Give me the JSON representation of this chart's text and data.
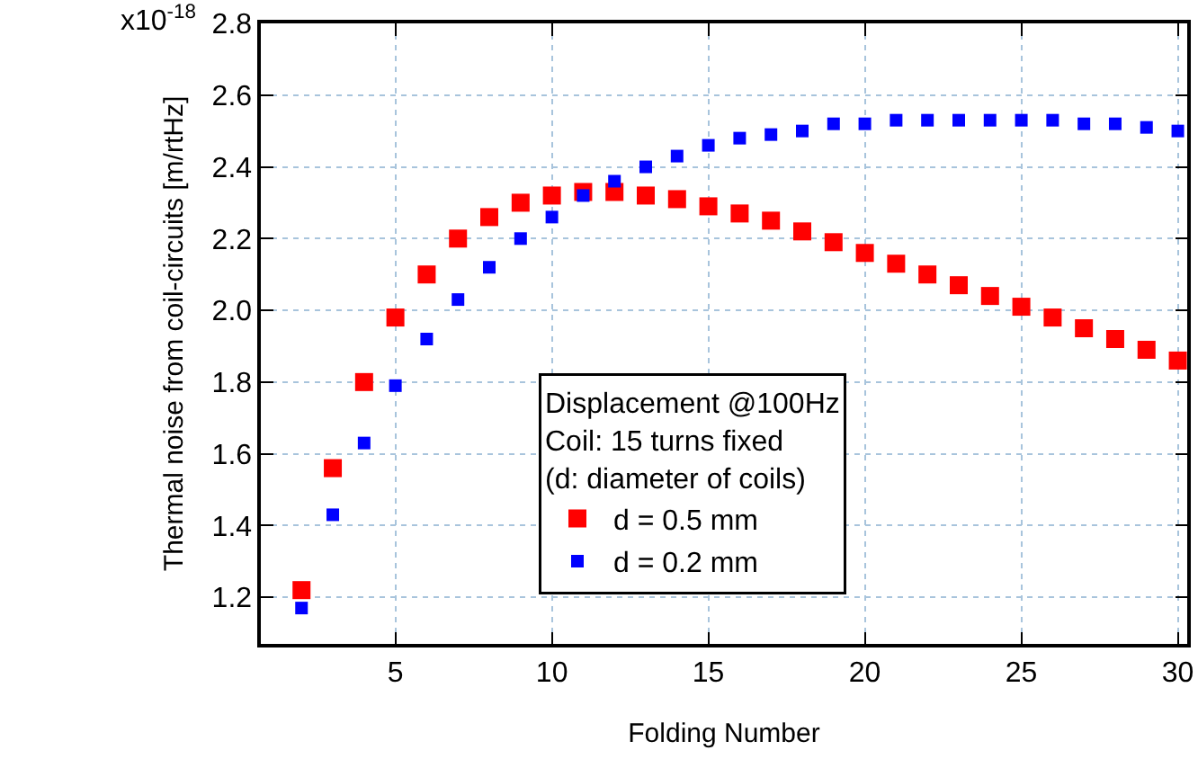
{
  "chart_data": {
    "type": "scatter",
    "xlabel": "Folding Number",
    "ylabel": "Thermal noise from coil-circuits [m/rtHz]",
    "legend_title": "Displacement @100Hz\nCoil: 15 turns fixed\n(d: diameter of coils)",
    "annotations": [
      "x10$^{-18}$"
    ],
    "x": [
      2,
      3,
      4,
      5,
      6,
      7,
      8,
      9,
      10,
      11,
      12,
      13,
      14,
      15,
      16,
      17,
      18,
      19,
      20,
      21,
      22,
      23,
      24,
      25,
      26,
      27,
      28,
      29,
      30
    ],
    "series": [
      {
        "name": "d = 0.5 mm",
        "color": "#ff0000",
        "values": [
          1.22,
          1.56,
          1.8,
          1.98,
          2.1,
          2.2,
          2.26,
          2.3,
          2.32,
          2.33,
          2.33,
          2.32,
          2.31,
          2.29,
          2.27,
          2.25,
          2.22,
          2.19,
          2.16,
          2.13,
          2.1,
          2.07,
          2.04,
          2.01,
          1.98,
          1.95,
          1.92,
          1.89,
          1.86
        ]
      },
      {
        "name": "d = 0.2 mm",
        "color": "#0000ff",
        "values": [
          1.17,
          1.43,
          1.63,
          1.79,
          1.92,
          2.03,
          2.12,
          2.2,
          2.26,
          2.32,
          2.36,
          2.4,
          2.43,
          2.46,
          2.48,
          2.49,
          2.5,
          2.52,
          2.52,
          2.53,
          2.53,
          2.53,
          2.53,
          2.53,
          2.53,
          2.52,
          2.52,
          2.51,
          2.5
        ]
      }
    ],
    "xlim": [
      0.7,
      30.3
    ],
    "xticks": [
      5,
      10,
      15,
      20,
      25,
      30
    ],
    "ylim": [
      1.07,
      2.8
    ],
    "yticks": [
      1.2,
      1.4,
      1.6,
      1.8,
      {
        "value": 2.0,
        "label": "2.0"
      },
      2.2,
      2.4,
      2.6,
      2.8
    ],
    "grid": true,
    "legend": "bottom",
    "marker": "square"
  }
}
